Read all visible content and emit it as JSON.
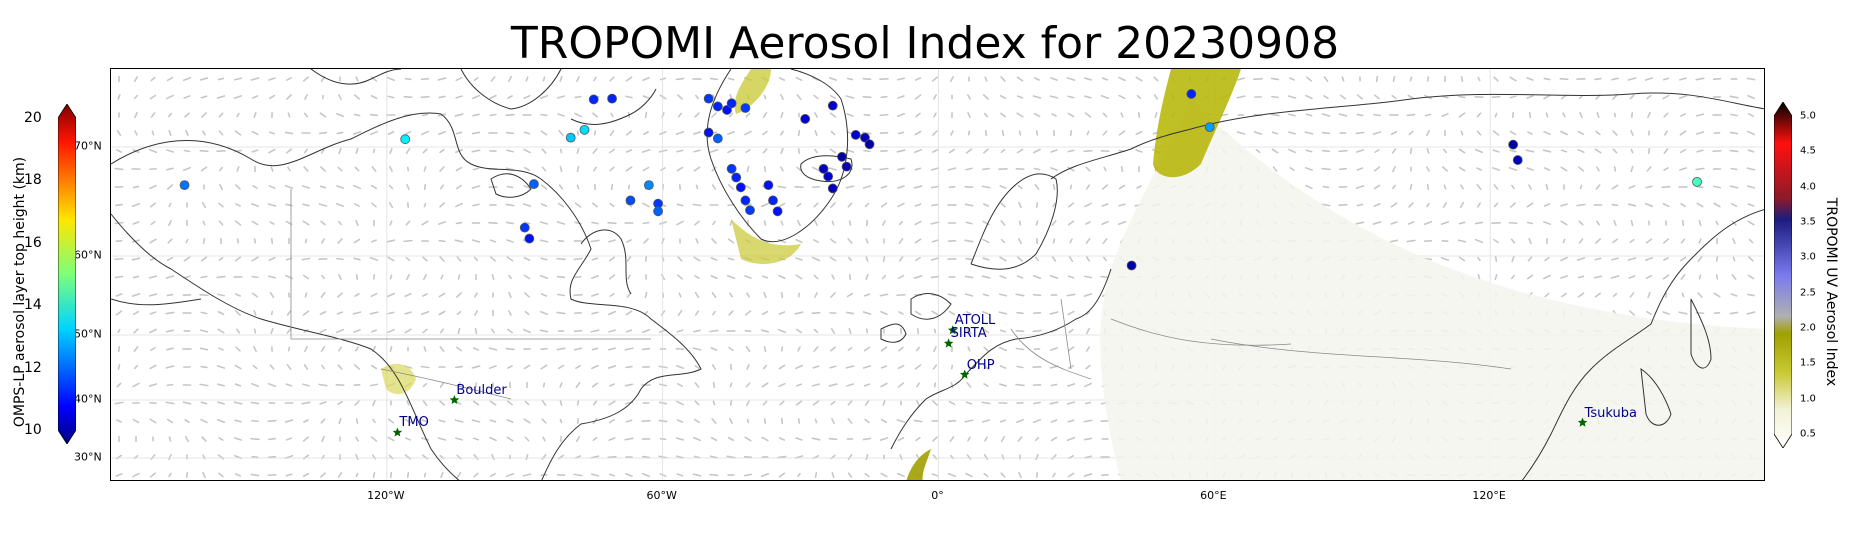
{
  "title": "TROPOMI Aerosol Index for 20230908",
  "map": {
    "projection": "PlateCarree",
    "lon_ticks": [
      {
        "lon": -120,
        "label": "120°W"
      },
      {
        "lon": -60,
        "label": "60°W"
      },
      {
        "lon": 0,
        "label": "0°"
      },
      {
        "lon": 60,
        "label": "60°E"
      },
      {
        "lon": 120,
        "label": "120°E"
      }
    ],
    "lat_ticks": [
      {
        "lat": 70,
        "label": "70°N"
      },
      {
        "lat": 60,
        "label": "60°N"
      },
      {
        "lat": 50,
        "label": "50°N"
      },
      {
        "lat": 40,
        "label": "40°N"
      },
      {
        "lat": 30,
        "label": "30°N"
      }
    ],
    "extent": {
      "lon_min": -180,
      "lon_max": 180,
      "lat_min": 25,
      "lat_max": 90
    }
  },
  "left_colorbar": {
    "label": "OMPS-LP aerosol layer top height (km)",
    "ticks": [
      "20",
      "18",
      "16",
      "14",
      "12",
      "10"
    ],
    "range": [
      10,
      20
    ],
    "cmap": "jet"
  },
  "right_colorbar": {
    "label": "TROPOMI UV Aerosol Index",
    "ticks": [
      "5.0",
      "4.5",
      "4.0",
      "3.5",
      "3.0",
      "2.5",
      "2.0",
      "1.5",
      "1.0",
      "0.5"
    ],
    "range": [
      0.5,
      5.0
    ]
  },
  "sites": [
    {
      "name": "ATOLL",
      "lon": 3.1,
      "lat": 50.6
    },
    {
      "name": "SIRTA",
      "lon": 2.2,
      "lat": 48.7
    },
    {
      "name": "OHP",
      "lon": 5.7,
      "lat": 43.9
    },
    {
      "name": "Boulder",
      "lon": -105.3,
      "lat": 40.0
    },
    {
      "name": "TMO",
      "lon": -117.7,
      "lat": 34.4
    },
    {
      "name": "Tsukuba",
      "lon": 140.1,
      "lat": 36.1
    }
  ],
  "omps_points": [
    {
      "lon": -164,
      "lat": 66.5,
      "h": 12.4
    },
    {
      "lon": -116,
      "lat": 72.0,
      "h": 13.6
    },
    {
      "lon": -75,
      "lat": 82.2,
      "h": 11.6
    },
    {
      "lon": -71,
      "lat": 82.4,
      "h": 11.6
    },
    {
      "lon": -77,
      "lat": 74.4,
      "h": 13.4
    },
    {
      "lon": -80,
      "lat": 72.4,
      "h": 13.2
    },
    {
      "lon": -88,
      "lat": 66.6,
      "h": 12.2
    },
    {
      "lon": -90,
      "lat": 62.6,
      "h": 11.8
    },
    {
      "lon": -89,
      "lat": 61.6,
      "h": 11.4
    },
    {
      "lon": -67,
      "lat": 65.1,
      "h": 12.0
    },
    {
      "lon": -61,
      "lat": 64.8,
      "h": 11.8
    },
    {
      "lon": -61,
      "lat": 64.1,
      "h": 12.2
    },
    {
      "lon": -63,
      "lat": 66.5,
      "h": 12.6
    },
    {
      "lon": -50,
      "lat": 82.4,
      "h": 11.8
    },
    {
      "lon": -48,
      "lat": 80.4,
      "h": 11.6
    },
    {
      "lon": -46,
      "lat": 79.5,
      "h": 11.4
    },
    {
      "lon": -45,
      "lat": 81.2,
      "h": 11.6
    },
    {
      "lon": -42,
      "lat": 80.0,
      "h": 11.8
    },
    {
      "lon": -50,
      "lat": 73.7,
      "h": 11.4
    },
    {
      "lon": -48,
      "lat": 72.2,
      "h": 12.2
    },
    {
      "lon": -45,
      "lat": 68.0,
      "h": 11.8
    },
    {
      "lon": -44,
      "lat": 67.2,
      "h": 11.6
    },
    {
      "lon": -43,
      "lat": 66.3,
      "h": 11.4
    },
    {
      "lon": -42,
      "lat": 65.1,
      "h": 11.6
    },
    {
      "lon": -41,
      "lat": 64.2,
      "h": 11.8
    },
    {
      "lon": -37,
      "lat": 66.5,
      "h": 11.4
    },
    {
      "lon": -36,
      "lat": 65.1,
      "h": 11.6
    },
    {
      "lon": -35,
      "lat": 64.1,
      "h": 11.4
    },
    {
      "lon": -29,
      "lat": 77.2,
      "h": 10.8
    },
    {
      "lon": -23,
      "lat": 80.6,
      "h": 10.8
    },
    {
      "lon": -25,
      "lat": 68.0,
      "h": 10.6
    },
    {
      "lon": -24,
      "lat": 67.3,
      "h": 10.8
    },
    {
      "lon": -23,
      "lat": 66.2,
      "h": 10.6
    },
    {
      "lon": -21,
      "lat": 69.1,
      "h": 10.4
    },
    {
      "lon": -20,
      "lat": 68.2,
      "h": 10.6
    },
    {
      "lon": -18,
      "lat": 73.1,
      "h": 10.8
    },
    {
      "lon": -16,
      "lat": 72.4,
      "h": 10.6
    },
    {
      "lon": -15,
      "lat": 70.7,
      "h": 10.4
    },
    {
      "lon": 42,
      "lat": 58.8,
      "h": 10.4
    },
    {
      "lon": 55,
      "lat": 83.6,
      "h": 11.6
    },
    {
      "lon": 59,
      "lat": 75.1,
      "h": 12.8
    },
    {
      "lon": 125,
      "lat": 70.6,
      "h": 10.4
    },
    {
      "lon": 126,
      "lat": 68.8,
      "h": 10.6
    },
    {
      "lon": 165,
      "lat": 66.8,
      "h": 14.4
    }
  ],
  "colors": {
    "coast": "#333333",
    "border": "#888888",
    "grid": "#dddddd",
    "site_marker": "#006400",
    "site_label": "#00008b",
    "aerosol_low": "#c8c832",
    "wind_arrow": "#b4b4b4"
  }
}
